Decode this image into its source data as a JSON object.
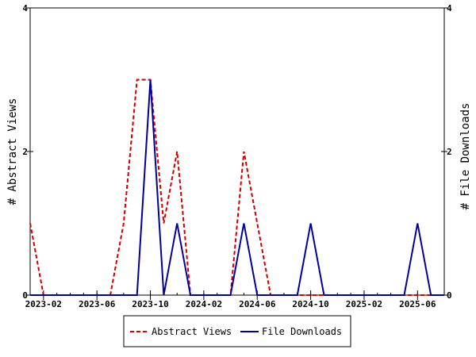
{
  "chart_data": {
    "type": "line",
    "title": "",
    "xlabel": "",
    "ylabel_left": "# Abstract Views",
    "ylabel_right": "# File Downloads",
    "ylim": [
      0,
      4
    ],
    "y_ticks": [
      "0",
      "2",
      "4"
    ],
    "x_ticks": [
      "2023-02",
      "2023-06",
      "2023-10",
      "2024-02",
      "2024-06",
      "2024-10",
      "2025-02",
      "2025-06"
    ],
    "x": [
      "2023-01",
      "2023-02",
      "2023-03",
      "2023-04",
      "2023-05",
      "2023-06",
      "2023-07",
      "2023-08",
      "2023-09",
      "2023-10",
      "2023-11",
      "2023-12",
      "2024-01",
      "2024-02",
      "2024-03",
      "2024-04",
      "2024-05",
      "2024-06",
      "2024-07",
      "2024-08",
      "2024-09",
      "2024-10",
      "2024-11",
      "2024-12",
      "2025-01",
      "2025-02",
      "2025-03",
      "2025-04",
      "2025-05",
      "2025-06",
      "2025-07",
      "2025-08"
    ],
    "series": [
      {
        "name": "Abstract Views",
        "color": "#cc0000",
        "style": "dashed",
        "values": [
          1,
          0,
          0,
          0,
          0,
          0,
          0,
          1,
          3,
          3,
          1,
          2,
          0,
          0,
          0,
          0,
          2,
          1,
          0,
          0,
          0,
          0,
          0,
          0,
          0,
          0,
          0,
          0,
          0,
          0,
          0,
          0
        ]
      },
      {
        "name": "File Downloads",
        "color": "#000099",
        "style": "solid",
        "values": [
          0,
          0,
          0,
          0,
          0,
          0,
          0,
          0,
          0,
          3,
          0,
          1,
          0,
          0,
          0,
          0,
          1,
          0,
          0,
          0,
          0,
          1,
          0,
          0,
          0,
          0,
          0,
          0,
          0,
          1,
          0,
          0
        ]
      }
    ],
    "legend_position": "bottom"
  }
}
